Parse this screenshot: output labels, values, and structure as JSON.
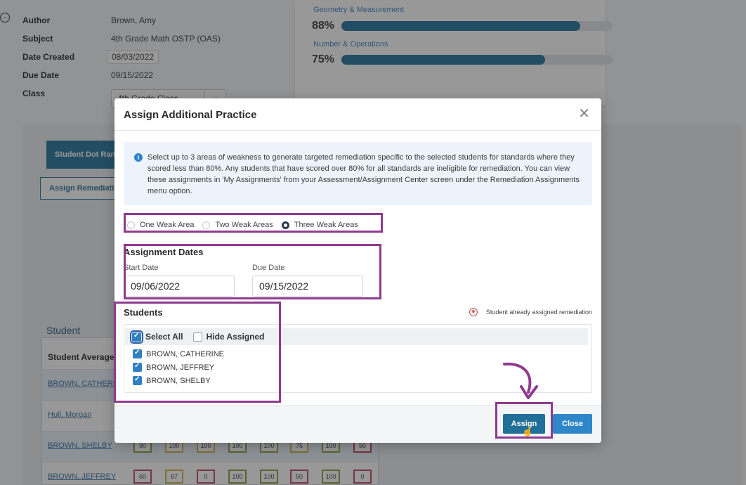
{
  "background": {
    "meta": [
      {
        "label": "Author",
        "value": "Brown, Amy"
      },
      {
        "label": "Subject",
        "value": "4th Grade Math OSTP (OAS)"
      },
      {
        "label": "Date Created",
        "value": "08/03/2022"
      },
      {
        "label": "Due Date",
        "value": "09/15/2022"
      },
      {
        "label": "Class",
        "value": "4th Grade Class"
      }
    ],
    "performance": [
      {
        "category": "Geometry & Measurement",
        "percent": "88%",
        "fill": 0.88
      },
      {
        "category": "Number & Operations",
        "percent": "75%",
        "fill": 0.75
      }
    ],
    "tab_label": "Student Dot Ran",
    "remediation_button": "Assign Remediati",
    "student_heading": "Student",
    "student_average_label": "Student Average",
    "students": [
      {
        "name": "BROWN, CATHERI",
        "scores": []
      },
      {
        "name": "Hull, Morgan",
        "scores": []
      },
      {
        "name": "BROWN, SHELBY",
        "scores": [
          "90",
          "100",
          "100",
          "100",
          "100",
          "75",
          "100",
          "50"
        ]
      },
      {
        "name": "BROWN, JEFFREY",
        "scores": [
          "60",
          "67",
          "0",
          "100",
          "100",
          "50",
          "100",
          "0"
        ]
      }
    ]
  },
  "modal": {
    "title": "Assign Additional Practice",
    "close_icon": "close-icon",
    "info_text": "Select up to 3 areas of weakness to generate targeted remediation specific to the selected students for standards where they scored less than 80%. Any students that have scored over 80% for all standards are ineligible for remediation. You can view these assignments in 'My Assignments' from your Assessment/Assignment Center screen under the Remediation Assignments menu option.",
    "weak_area_options": [
      {
        "label": "One Weak Area",
        "selected": false
      },
      {
        "label": "Two Weak Areas",
        "selected": false
      },
      {
        "label": "Three Weak Areas",
        "selected": true
      }
    ],
    "dates": {
      "title": "Assignment Dates",
      "start_label": "Start Date",
      "start_value": "09/06/2022",
      "due_label": "Due Date",
      "due_value": "09/15/2022"
    },
    "students": {
      "title": "Students",
      "assigned_legend": "Student already assigned remediation",
      "select_all": "Select All",
      "hide_assigned": "Hide Assigned",
      "list": [
        "BROWN, CATHERINE",
        "BROWN, JEFFREY",
        "BROWN, SHELBY"
      ]
    },
    "buttons": {
      "assign": "Assign",
      "close": "Close"
    }
  },
  "colors": {
    "annotation": "#8e3b8e",
    "primary": "#1f6f99",
    "secondary": "#2f86c8"
  }
}
